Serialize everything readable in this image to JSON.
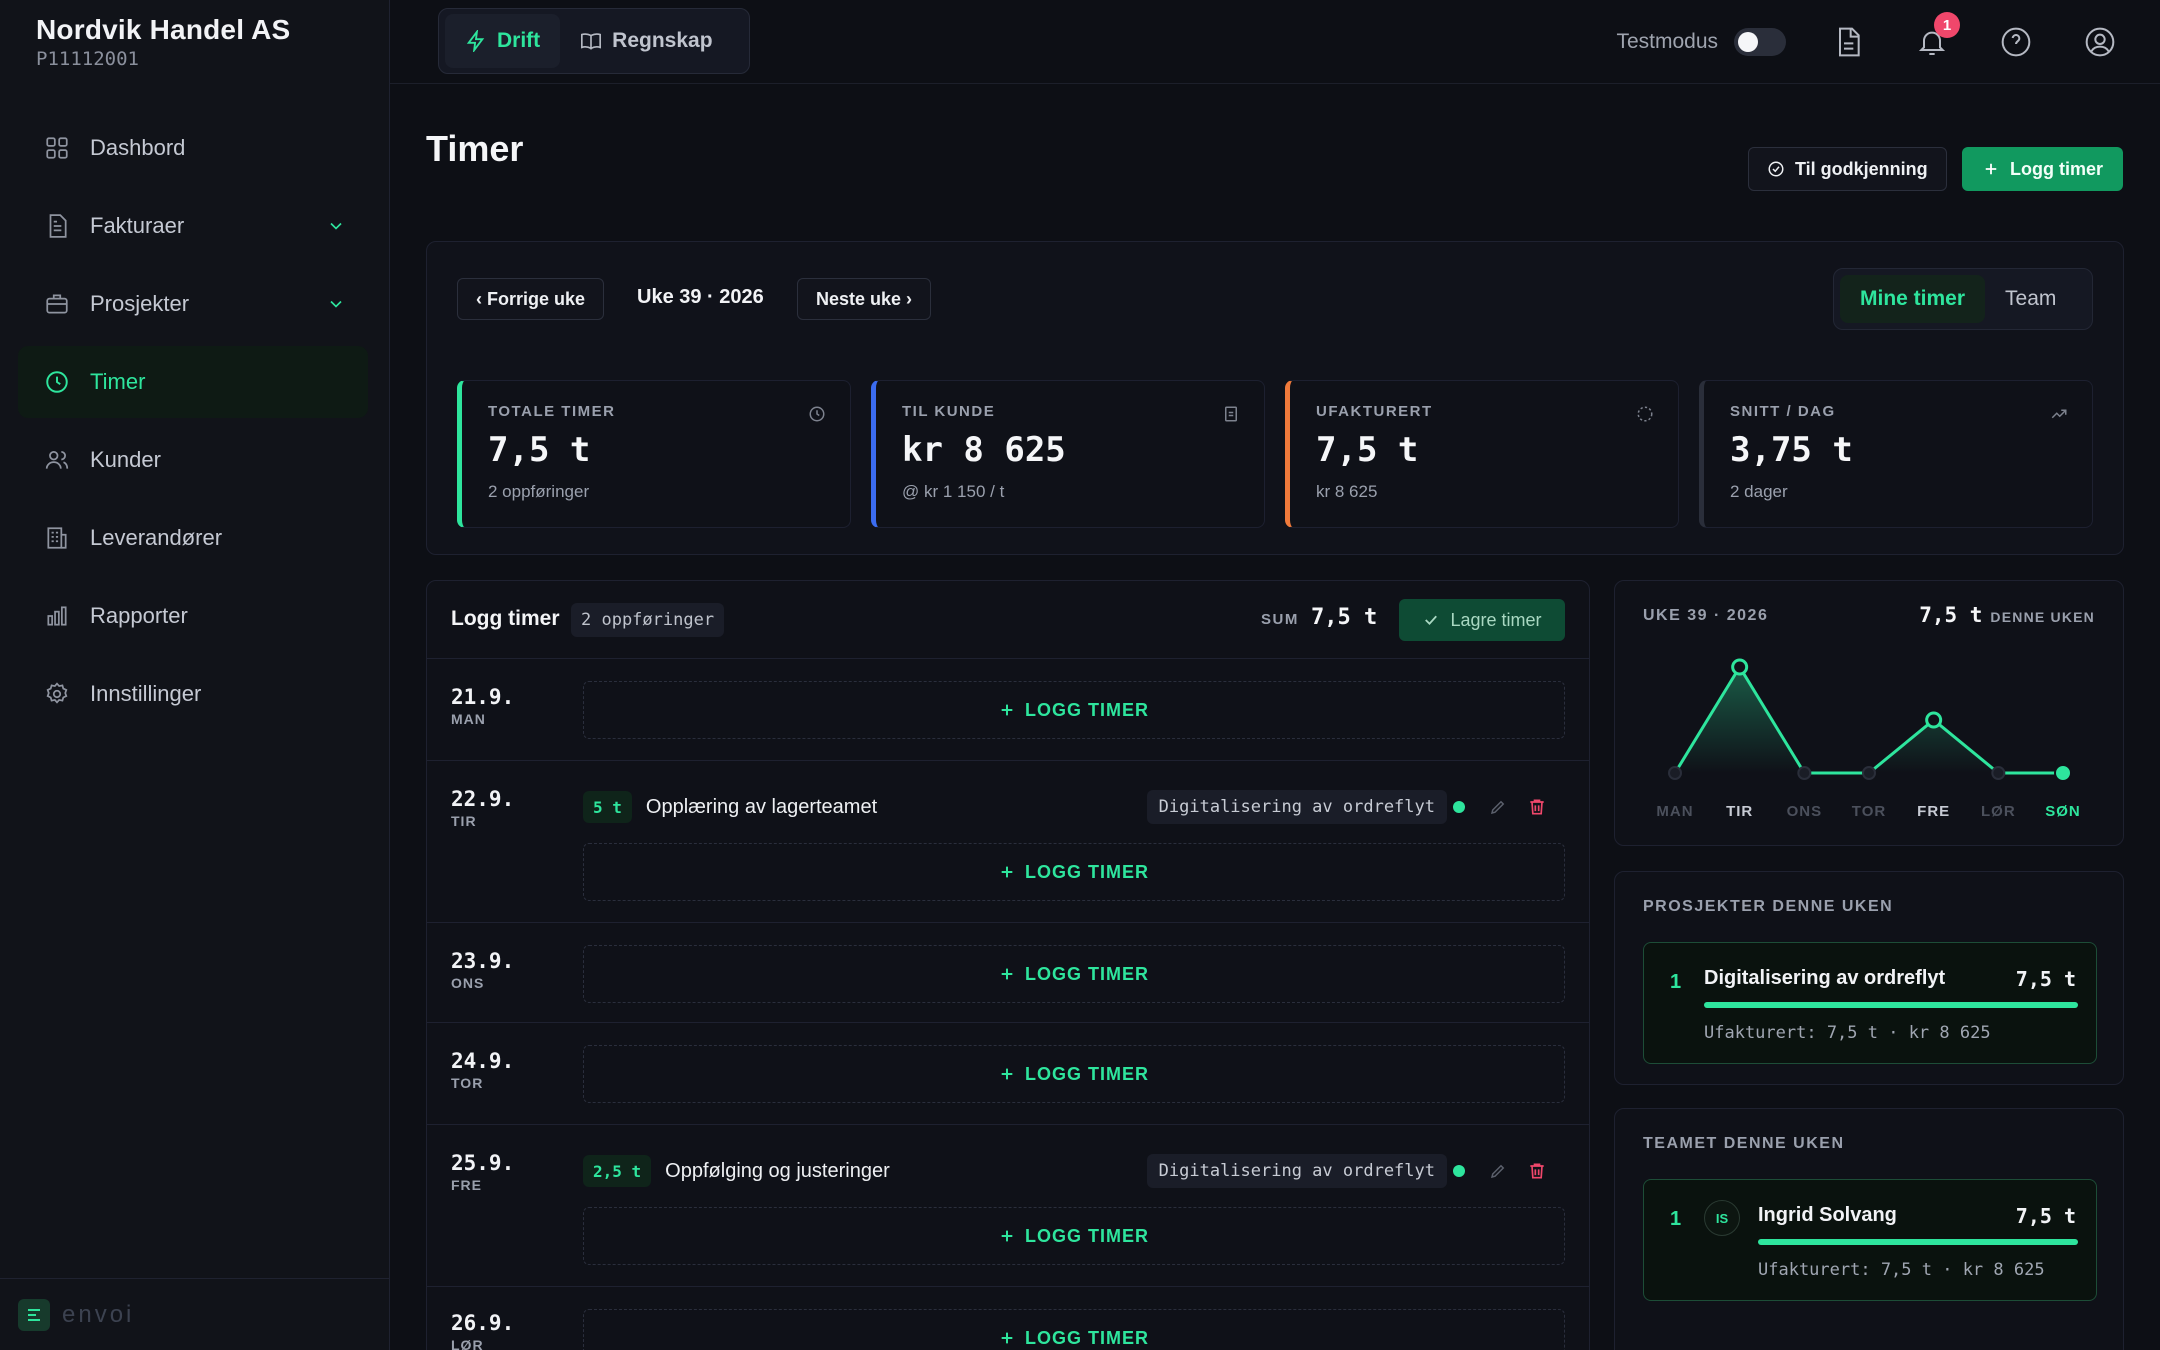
{
  "brand": {
    "name": "Nordvik Handel AS",
    "id": "P11112001"
  },
  "nav": [
    {
      "label": "Dashbord",
      "icon": "grid-icon",
      "active": false
    },
    {
      "label": "Fakturaer",
      "icon": "document-icon",
      "active": false
    },
    {
      "label": "Prosjekter",
      "icon": "briefcase-icon",
      "active": false
    },
    {
      "label": "Timer",
      "icon": "clock-icon",
      "active": true
    },
    {
      "label": "Kunder",
      "icon": "users-icon",
      "active": false
    },
    {
      "label": "Leverandører",
      "icon": "building-icon",
      "active": false
    },
    {
      "label": "Rapporter",
      "icon": "bar-chart-icon",
      "active": false
    },
    {
      "label": "Innstillinger",
      "icon": "gear-icon",
      "active": false
    }
  ],
  "footer": {
    "logo_text": "envoi"
  },
  "topbar": {
    "mode_tabs": [
      {
        "label": "Drift",
        "active": true
      },
      {
        "label": "Regnskap",
        "active": false
      }
    ],
    "testmode_label": "Testmodus",
    "testmode_on": false,
    "notification_count": "1"
  },
  "page": {
    "title": "Timer",
    "approval_button": "Til godkjenning",
    "log_button": "Logg timer"
  },
  "week": {
    "prev": "‹ Forrige uke",
    "label": "Uke 39 · 2026",
    "next": "Neste uke ›",
    "view_tabs": [
      {
        "label": "Mine timer",
        "active": true
      },
      {
        "label": "Team",
        "active": false
      }
    ]
  },
  "stats": [
    {
      "label": "TOTALE TIMER",
      "value": "7,5 t",
      "sub": "2 oppføringer",
      "accent": "#2ee59d",
      "icon": "clock-icon"
    },
    {
      "label": "TIL KUNDE",
      "value": "kr 8 625",
      "sub": "@ kr 1 150 / t",
      "accent": "#3b6cf0",
      "icon": "invoice-icon"
    },
    {
      "label": "UFAKTURERT",
      "value": "7,5 t",
      "sub": "kr 8 625",
      "accent": "#f07a3b",
      "icon": "loader-icon"
    },
    {
      "label": "SNITT / DAG",
      "value": "3,75 t",
      "sub": "2 dager",
      "accent": "#2a2e3a",
      "icon": "trending-up-icon"
    }
  ],
  "log": {
    "title": "Logg timer",
    "count": "2 oppføringer",
    "sum_label": "SUM",
    "sum_value": "7,5 t",
    "save_label": "Lagre timer",
    "add_label": "LOGG TIMER",
    "days": [
      {
        "date": "21.9.",
        "day": "MAN",
        "entries": []
      },
      {
        "date": "22.9.",
        "day": "TIR",
        "entries": [
          {
            "hours": "5 t",
            "desc": "Opplæring av lagerteamet",
            "project": "Digitalisering av ordreflyt"
          }
        ]
      },
      {
        "date": "23.9.",
        "day": "ONS",
        "entries": []
      },
      {
        "date": "24.9.",
        "day": "TOR",
        "entries": []
      },
      {
        "date": "25.9.",
        "day": "FRE",
        "entries": [
          {
            "hours": "2,5 t",
            "desc": "Oppfølging og justeringer",
            "project": "Digitalisering av ordreflyt"
          }
        ]
      },
      {
        "date": "26.9.",
        "day": "LØR",
        "entries": []
      }
    ]
  },
  "chart": {
    "title": "UKE 39 · 2026",
    "total_value": "7,5 t",
    "total_label": "DENNE UKEN"
  },
  "chart_data": {
    "type": "line",
    "categories": [
      "MAN",
      "TIR",
      "ONS",
      "TOR",
      "FRE",
      "LØR",
      "SØN"
    ],
    "values": [
      0,
      5,
      0,
      0,
      2.5,
      0,
      0
    ],
    "ylim": [
      0,
      5
    ],
    "highlight": [
      "TIR",
      "FRE",
      "SØN"
    ]
  },
  "projects": {
    "title": "PROSJEKTER DENNE UKEN",
    "items": [
      {
        "rank": "1",
        "name": "Digitalisering av ordreflyt",
        "hours": "7,5 t",
        "sub": "Ufakturert: 7,5 t · kr 8 625",
        "share": 1.0
      }
    ]
  },
  "team": {
    "title": "TEAMET DENNE UKEN",
    "items": [
      {
        "rank": "1",
        "initials": "IS",
        "name": "Ingrid Solvang",
        "hours": "7,5 t",
        "sub": "Ufakturert: 7,5 t · kr 8 625",
        "share": 1.0
      }
    ]
  },
  "colors": {
    "accent": "#2ee59d",
    "danger": "#f0476b",
    "background": "#0d0f15"
  }
}
